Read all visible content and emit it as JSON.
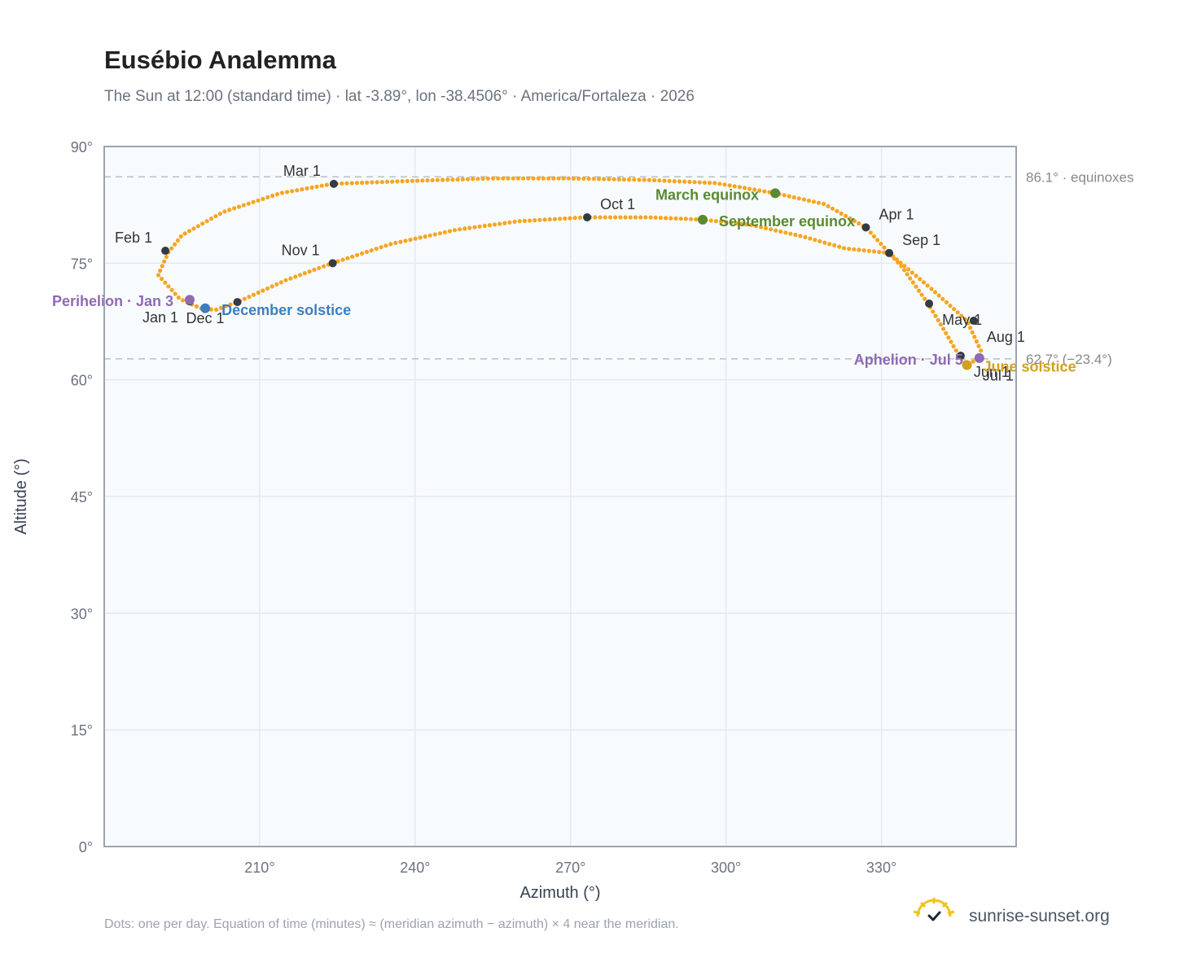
{
  "title": "Eusébio Analemma",
  "subtitle": "The Sun at 12:00 (standard time) · lat -3.89°, lon -38.4506° · America/Fortaleza · 2026",
  "footnote": "Dots: one per day. Equation of time (minutes) ≈ (meridian azimuth − azimuth) × 4 near the meridian.",
  "brand": {
    "text": "sunrise-sunset.org",
    "icon": "sun-check-icon"
  },
  "colors": {
    "path": "#f5a623",
    "month_marker": "#333b44",
    "perihelion": "#8e6bb4",
    "aphelion": "#8e6bb4",
    "december_solstice": "#3d7ebf",
    "june_solstice": "#d4a017",
    "equinox": "#5a8a32",
    "plot_bg": "#f8fbfd",
    "grid": "#e5e9ee",
    "frame": "#9aa5b1",
    "refline": "#b8bfc7"
  },
  "chart_data": {
    "type": "scatter",
    "xlabel": "Azimuth (°)",
    "ylabel": "Altitude (°)",
    "xlim": [
      180,
      356
    ],
    "ylim": [
      0,
      90
    ],
    "x_ticks": [
      210,
      240,
      270,
      300,
      330
    ],
    "x_tick_labels": [
      "210°",
      "240°",
      "270°",
      "300°",
      "330°"
    ],
    "y_ticks": [
      0,
      15,
      30,
      45,
      60,
      75,
      90
    ],
    "y_tick_labels": [
      "0°",
      "15°",
      "30°",
      "45°",
      "60°",
      "75°",
      "90°"
    ],
    "grid": true,
    "analemma": [
      [
        192.4,
        76.4
      ],
      [
        190.4,
        73.5
      ],
      [
        194.6,
        70.4
      ],
      [
        198.6,
        69.2
      ],
      [
        201.5,
        69.0
      ],
      [
        205.7,
        70.0
      ],
      [
        215.0,
        72.8
      ],
      [
        224.0,
        75.0
      ],
      [
        235.5,
        77.5
      ],
      [
        248.0,
        79.3
      ],
      [
        260.0,
        80.4
      ],
      [
        273.0,
        80.9
      ],
      [
        285.0,
        80.9
      ],
      [
        295.5,
        80.6
      ],
      [
        305.0,
        79.9
      ],
      [
        315.0,
        78.4
      ],
      [
        323.0,
        76.9
      ],
      [
        331.5,
        76.3
      ],
      [
        340.0,
        71.5
      ],
      [
        346.5,
        67.6
      ],
      [
        349.3,
        63.6
      ],
      [
        348.9,
        62.8
      ],
      [
        346.5,
        61.9
      ],
      [
        345.0,
        63.1
      ],
      [
        342.0,
        66.5
      ],
      [
        339.0,
        69.8
      ],
      [
        334.0,
        74.5
      ],
      [
        331.5,
        76.3
      ],
      [
        327.0,
        79.6
      ],
      [
        319.0,
        82.6
      ],
      [
        309.5,
        84.0
      ],
      [
        298.0,
        85.3
      ],
      [
        285.0,
        85.7
      ],
      [
        270.0,
        85.9
      ],
      [
        255.0,
        85.9
      ],
      [
        240.0,
        85.6
      ],
      [
        224.0,
        85.2
      ],
      [
        214.0,
        84.0
      ],
      [
        203.0,
        81.6
      ],
      [
        195.0,
        78.6
      ],
      [
        192.4,
        76.4
      ]
    ],
    "month_markers": [
      {
        "label": "Jan 1",
        "x": 196.5,
        "y": 70.1,
        "anchor": "end",
        "dx": -14,
        "dy": 26
      },
      {
        "label": "Feb 1",
        "x": 191.8,
        "y": 76.6,
        "anchor": "end",
        "dx": -16,
        "dy": -10
      },
      {
        "label": "Mar 1",
        "x": 224.3,
        "y": 85.2,
        "anchor": "end",
        "dx": -16,
        "dy": -10
      },
      {
        "label": "Apr 1",
        "x": 327.0,
        "y": 79.6,
        "anchor": "start",
        "dx": 16,
        "dy": -10
      },
      {
        "label": "May 1",
        "x": 339.2,
        "y": 69.8,
        "anchor": "start",
        "dx": 16,
        "dy": 26
      },
      {
        "label": "Jun 1",
        "x": 345.3,
        "y": 63.1,
        "anchor": "start",
        "dx": 16,
        "dy": 26
      },
      {
        "label": "Jul 1",
        "x": 346.4,
        "y": 62.0,
        "anchor": "start",
        "dx": 20,
        "dy": 20
      },
      {
        "label": "Aug 1",
        "x": 347.8,
        "y": 67.6,
        "anchor": "start",
        "dx": 16,
        "dy": 26
      },
      {
        "label": "Sep 1",
        "x": 331.5,
        "y": 76.3,
        "anchor": "start",
        "dx": 16,
        "dy": -10
      },
      {
        "label": "Oct 1",
        "x": 273.2,
        "y": 80.9,
        "anchor": "start",
        "dx": 16,
        "dy": -10
      },
      {
        "label": "Nov 1",
        "x": 224.1,
        "y": 75.0,
        "anchor": "end",
        "dx": -16,
        "dy": -10
      },
      {
        "label": "Dec 1",
        "x": 205.7,
        "y": 70.0,
        "anchor": "end",
        "dx": -16,
        "dy": 26
      }
    ],
    "events": [
      {
        "label": "Perihelion · Jan 3",
        "x": 196.5,
        "y": 70.3,
        "color_key": "perihelion",
        "anchor": "end",
        "dx": -20,
        "dy": 8
      },
      {
        "label": "December solstice",
        "x": 199.5,
        "y": 69.2,
        "color_key": "december_solstice",
        "anchor": "start",
        "dx": 20,
        "dy": 8
      },
      {
        "label": "March equinox",
        "x": 309.5,
        "y": 84.0,
        "color_key": "equinox",
        "anchor": "end",
        "dx": -20,
        "dy": 8
      },
      {
        "label": "September equinox",
        "x": 295.5,
        "y": 80.6,
        "color_key": "equinox",
        "anchor": "start",
        "dx": 20,
        "dy": 8
      },
      {
        "label": "Aphelion · Jul 5",
        "x": 348.9,
        "y": 62.8,
        "color_key": "aphelion",
        "anchor": "end",
        "dx": -20,
        "dy": 8
      },
      {
        "label": "June solstice",
        "x": 346.5,
        "y": 61.9,
        "color_key": "june_solstice",
        "anchor": "start",
        "dx": 20,
        "dy": 8
      }
    ],
    "reference_lines": [
      {
        "y": 86.1,
        "label": "86.1° · equinoxes"
      },
      {
        "y": 62.7,
        "label": "62.7° (−23.4°)"
      }
    ]
  }
}
